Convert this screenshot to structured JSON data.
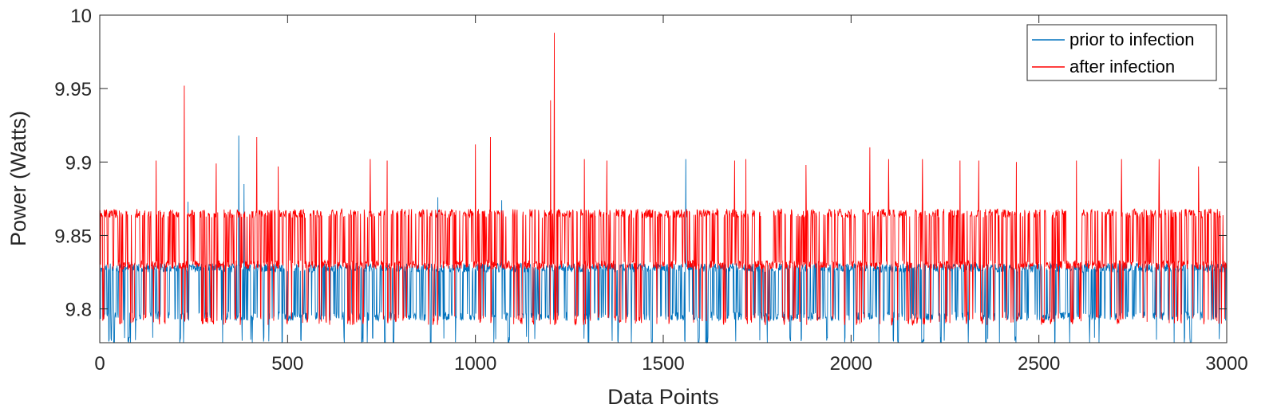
{
  "chart_data": {
    "type": "line",
    "title": "",
    "xlabel": "Data Points",
    "ylabel": "Power (Watts)",
    "xlim": [
      0,
      3000
    ],
    "ylim": [
      9.777,
      10
    ],
    "x_ticks": [
      "0",
      "500",
      "1000",
      "1500",
      "2000",
      "2500",
      "3000"
    ],
    "y_ticks": [
      "9.8",
      "9.85",
      "9.9",
      "9.95",
      "10"
    ],
    "grid": false,
    "legend_position": "top-right",
    "series": [
      {
        "name": "prior to infection",
        "color": "#0072BD",
        "pattern": {
          "n_points": 3000,
          "levels": [
            9.828,
            9.795,
            9.778
          ],
          "level_weights": [
            0.62,
            0.33,
            0.05
          ]
        },
        "spikes": [
          {
            "x": 370,
            "y": 9.918
          },
          {
            "x": 384,
            "y": 9.885
          },
          {
            "x": 900,
            "y": 9.876
          },
          {
            "x": 1560,
            "y": 9.902
          },
          {
            "x": 1070,
            "y": 9.874
          },
          {
            "x": 235,
            "y": 9.873
          }
        ]
      },
      {
        "name": "after infection",
        "color": "#FF0000",
        "pattern": {
          "n_points": 3000,
          "levels": [
            9.865,
            9.83,
            9.792
          ],
          "level_weights": [
            0.42,
            0.46,
            0.12
          ]
        },
        "spikes": [
          {
            "x": 225,
            "y": 9.952
          },
          {
            "x": 1210,
            "y": 9.988
          },
          {
            "x": 1200,
            "y": 9.942
          },
          {
            "x": 150,
            "y": 9.901
          },
          {
            "x": 310,
            "y": 9.899
          },
          {
            "x": 418,
            "y": 9.917
          },
          {
            "x": 475,
            "y": 9.897
          },
          {
            "x": 720,
            "y": 9.902
          },
          {
            "x": 765,
            "y": 9.901
          },
          {
            "x": 1000,
            "y": 9.912
          },
          {
            "x": 1040,
            "y": 9.917
          },
          {
            "x": 1290,
            "y": 9.902
          },
          {
            "x": 1350,
            "y": 9.901
          },
          {
            "x": 1690,
            "y": 9.901
          },
          {
            "x": 1720,
            "y": 9.902
          },
          {
            "x": 1880,
            "y": 9.898
          },
          {
            "x": 2050,
            "y": 9.91
          },
          {
            "x": 2100,
            "y": 9.902
          },
          {
            "x": 2190,
            "y": 9.902
          },
          {
            "x": 2290,
            "y": 9.901
          },
          {
            "x": 2340,
            "y": 9.901
          },
          {
            "x": 2440,
            "y": 9.9
          },
          {
            "x": 2600,
            "y": 9.901
          },
          {
            "x": 2720,
            "y": 9.902
          },
          {
            "x": 2820,
            "y": 9.902
          },
          {
            "x": 2925,
            "y": 9.897
          }
        ]
      }
    ]
  }
}
